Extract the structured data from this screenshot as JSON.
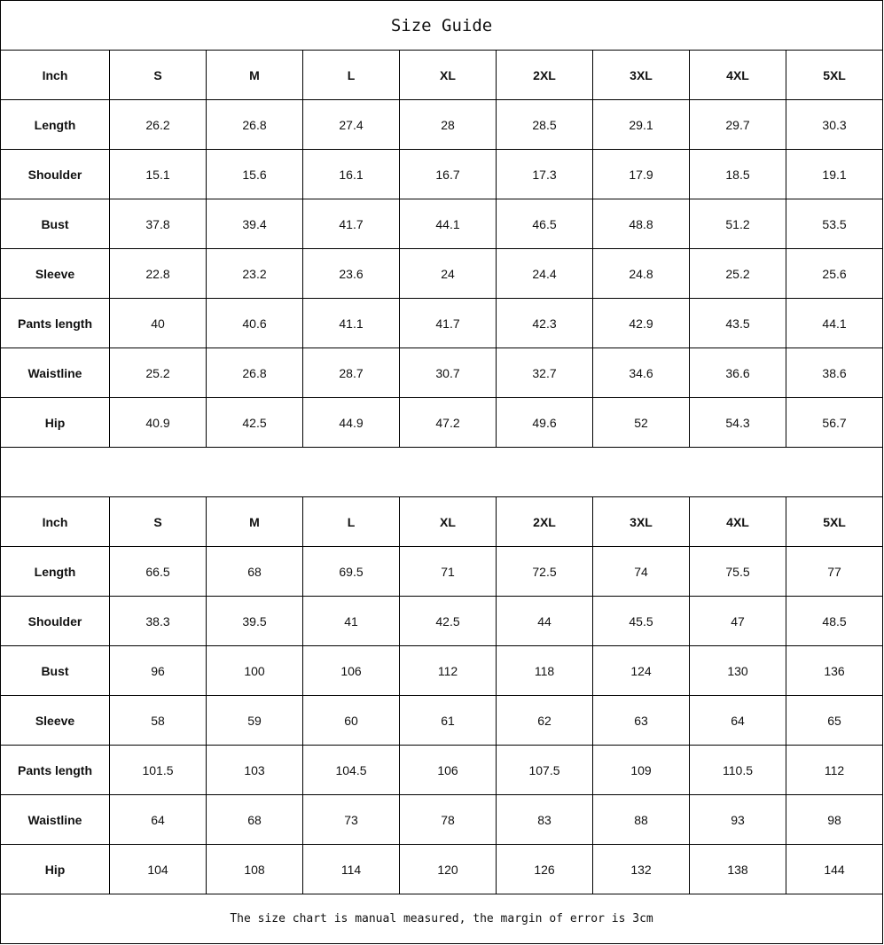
{
  "title": "Size Guide",
  "footer_note": "The size chart is manual measured, the margin of error is 3cm",
  "tables": [
    {
      "header": [
        "Inch",
        "S",
        "M",
        "L",
        "XL",
        "2XL",
        "3XL",
        "4XL",
        "5XL"
      ],
      "rows": [
        [
          "Length",
          "26.2",
          "26.8",
          "27.4",
          "28",
          "28.5",
          "29.1",
          "29.7",
          "30.3"
        ],
        [
          "Shoulder",
          "15.1",
          "15.6",
          "16.1",
          "16.7",
          "17.3",
          "17.9",
          "18.5",
          "19.1"
        ],
        [
          "Bust",
          "37.8",
          "39.4",
          "41.7",
          "44.1",
          "46.5",
          "48.8",
          "51.2",
          "53.5"
        ],
        [
          "Sleeve",
          "22.8",
          "23.2",
          "23.6",
          "24",
          "24.4",
          "24.8",
          "25.2",
          "25.6"
        ],
        [
          "Pants length",
          "40",
          "40.6",
          "41.1",
          "41.7",
          "42.3",
          "42.9",
          "43.5",
          "44.1"
        ],
        [
          "Waistline",
          "25.2",
          "26.8",
          "28.7",
          "30.7",
          "32.7",
          "34.6",
          "36.6",
          "38.6"
        ],
        [
          "Hip",
          "40.9",
          "42.5",
          "44.9",
          "47.2",
          "49.6",
          "52",
          "54.3",
          "56.7"
        ]
      ]
    },
    {
      "header": [
        "Inch",
        "S",
        "M",
        "L",
        "XL",
        "2XL",
        "3XL",
        "4XL",
        "5XL"
      ],
      "rows": [
        [
          "Length",
          "66.5",
          "68",
          "69.5",
          "71",
          "72.5",
          "74",
          "75.5",
          "77"
        ],
        [
          "Shoulder",
          "38.3",
          "39.5",
          "41",
          "42.5",
          "44",
          "45.5",
          "47",
          "48.5"
        ],
        [
          "Bust",
          "96",
          "100",
          "106",
          "112",
          "118",
          "124",
          "130",
          "136"
        ],
        [
          "Sleeve",
          "58",
          "59",
          "60",
          "61",
          "62",
          "63",
          "64",
          "65"
        ],
        [
          "Pants length",
          "101.5",
          "103",
          "104.5",
          "106",
          "107.5",
          "109",
          "110.5",
          "112"
        ],
        [
          "Waistline",
          "64",
          "68",
          "73",
          "78",
          "83",
          "88",
          "93",
          "98"
        ],
        [
          "Hip",
          "104",
          "108",
          "114",
          "120",
          "126",
          "132",
          "138",
          "144"
        ]
      ]
    }
  ]
}
